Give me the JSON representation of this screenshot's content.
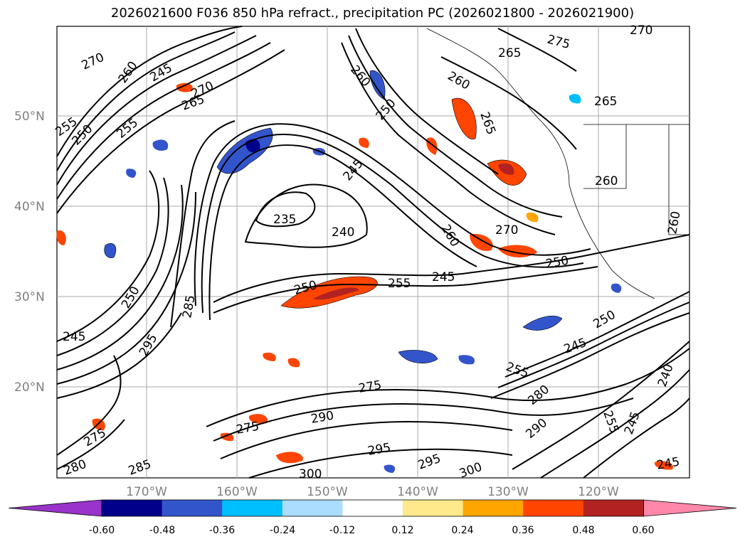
{
  "title": "2026021600 F036 850 hPa refract., precipitation PC (2026021800 - 2026021900)",
  "map": {
    "lat_labels": [
      "50°N",
      "40°N",
      "30°N",
      "20°N"
    ],
    "lon_labels": [
      "170°W",
      "160°W",
      "150°W",
      "140°W",
      "130°W",
      "120°W"
    ],
    "contour_labels": [
      "270",
      "260",
      "245",
      "265",
      "270",
      "255",
      "250",
      "255",
      "260",
      "275",
      "270",
      "265",
      "260",
      "265",
      "265",
      "260",
      "250",
      "245",
      "235",
      "240",
      "260",
      "270",
      "250",
      "250",
      "255",
      "245",
      "245",
      "250",
      "250",
      "245",
      "285",
      "295",
      "255",
      "275",
      "280",
      "275",
      "290",
      "290",
      "295",
      "300",
      "295",
      "300",
      "280",
      "285",
      "275",
      "240",
      "245",
      "255",
      "260",
      "245"
    ]
  },
  "colorbar": {
    "ticks": [
      "-0.60",
      "-0.48",
      "-0.36",
      "-0.24",
      "-0.12",
      "0.12",
      "0.24",
      "0.36",
      "0.48",
      "0.60"
    ],
    "colors": [
      "#9933cc",
      "#00008b",
      "#3355cc",
      "#00bfff",
      "#aaddff",
      "#ffffff",
      "#ffe98a",
      "#ffa500",
      "#ff4500",
      "#b22222",
      "#ff88aa",
      "#ff88bb"
    ],
    "extend": "both"
  },
  "legend_colors": {
    "negative_fill": [
      "#00bfff",
      "#3355cc",
      "#00008b"
    ],
    "positive_fill": [
      "#ffe98a",
      "#ffa500",
      "#ff4500",
      "#b22222"
    ]
  }
}
